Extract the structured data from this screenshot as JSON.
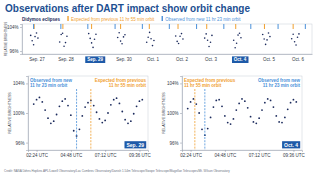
{
  "title": "Observations after DART impact show orbit change",
  "credit": "Credit: NASA/Johns Hopkins APL/Lowell Observatory/Las Cumbres Observatory/Danish 1.54m Telescope/Swope Telescope/Magellan Telescopes/Mt. Wilson Observatory",
  "chart_data": [
    {
      "type": "scatter",
      "y_label": "RELATIVE BRIGHTNESS",
      "color": "#1b2a5c",
      "x": [
        0.3,
        0.35,
        0.4,
        0.45,
        0.5,
        0.55,
        1.3,
        1.35,
        1.4,
        1.45,
        1.5,
        1.55,
        2.3,
        2.35,
        2.4,
        2.45,
        2.5,
        2.55,
        3.3,
        3.35,
        3.4,
        3.45,
        3.5,
        3.55,
        4.3,
        4.35,
        4.4,
        4.45,
        4.5,
        4.55,
        5.3,
        5.35,
        5.4,
        5.45,
        5.5,
        5.55,
        6.3,
        6.35,
        6.4,
        6.45,
        6.5,
        6.55,
        7.3,
        7.35,
        7.4,
        7.45,
        7.5,
        7.55,
        8.3,
        8.35,
        8.4,
        8.45,
        8.5,
        8.55,
        9.3,
        9.35,
        9.4,
        9.45,
        9.5,
        9.55
      ],
      "values": [
        101.2,
        99.4,
        98.1,
        100.8,
        102.0,
        100.3,
        99.0,
        101.5,
        101.9,
        97.6,
        98.8,
        100.9,
        101.8,
        100.2,
        98.7,
        97.2,
        99.9,
        101.6,
        100.5,
        102.1,
        99.3,
        98.4,
        100.7,
        101.4,
        98.9,
        100.6,
        102.2,
        100.1,
        97.8,
        99.5,
        101.0,
        99.2,
        98.5,
        100.9,
        101.8,
        100.0,
        100.3,
        101.7,
        99.6,
        97.5,
        98.9,
        101.2,
        99.6,
        97.1,
        98.6,
        101.3,
        101.9,
        100.4,
        101.5,
        100.0,
        98.2,
        99.7,
        102.0,
        100.8,
        100.1,
        101.6,
        99.1,
        98.0,
        100.6,
        101.7
      ],
      "xlim": [
        0,
        10
      ],
      "xticks": [
        {
          "value": 0.5,
          "label": "Sep. 27"
        },
        {
          "value": 1.5,
          "label": "Sep. 28"
        },
        {
          "value": 2.5,
          "label": "Sep. 29"
        },
        {
          "value": 3.5,
          "label": "Sep. 30"
        },
        {
          "value": 4.5,
          "label": "Oct. 1"
        },
        {
          "value": 5.5,
          "label": "Oct. 2"
        },
        {
          "value": 6.5,
          "label": "Oct. 3"
        },
        {
          "value": 7.5,
          "label": "Oct. 4"
        },
        {
          "value": 8.5,
          "label": "Oct. 5"
        },
        {
          "value": 9.5,
          "label": "Oct. 6"
        }
      ],
      "ylim": [
        95,
        105
      ],
      "yticks": [
        {
          "value": 104,
          "label": "104%"
        },
        {
          "value": 96,
          "label": "96%"
        }
      ],
      "eclipses": {
        "label": "Didymos eclipses",
        "series": [
          {
            "name": "Expected from previous 11 hr 55 min orbit",
            "color": "#f0a030",
            "marker": "tick",
            "x": [
              0.42,
              1.41,
              2.4,
              3.4,
              4.39,
              5.38,
              6.37,
              7.37,
              8.36,
              9.35
            ]
          },
          {
            "name": "Observed from new 11 hr 23 min orbit",
            "color": "#4a90d9",
            "marker": "tick",
            "x": [
              0.4,
              1.34,
              2.27,
              3.21,
              4.15,
              5.08,
              6.02,
              6.96,
              7.89,
              8.83,
              9.77
            ]
          }
        ]
      }
    },
    {
      "type": "scatter",
      "title": "Sep. 29",
      "y_label": "RELATIVE BRIGHTNESS",
      "color": "#1b2a5c",
      "x": [
        2.2,
        2.4,
        2.6,
        2.8,
        3.0,
        3.2,
        3.4,
        3.6,
        3.8,
        4.0,
        4.2,
        4.4,
        4.6,
        4.8,
        5.0,
        5.2,
        5.4,
        5.6,
        5.8,
        6.0,
        6.2,
        6.4,
        6.6,
        6.8,
        7.0,
        7.2,
        7.4,
        7.6,
        7.8,
        8.0,
        8.2,
        8.4,
        8.6,
        8.8,
        9.0,
        9.2,
        9.4,
        9.6,
        9.8
      ],
      "values": [
        101.2,
        101.8,
        102.1,
        101.5,
        100.4,
        99.3,
        98.6,
        98.9,
        99.8,
        100.9,
        101.6,
        101.9,
        101.0,
        99.7,
        97.6,
        96.9,
        97.8,
        99.6,
        100.8,
        101.4,
        101.7,
        101.0,
        100.1,
        99.2,
        98.7,
        99.0,
        100.0,
        101.1,
        101.8,
        102.0,
        101.3,
        100.2,
        99.1,
        98.6,
        98.9,
        99.9,
        100.9,
        101.6,
        101.8
      ],
      "xlim": [
        1.8,
        10.2
      ],
      "xticks": [
        {
          "value": 2.4,
          "label": "02:24 UTC"
        },
        {
          "value": 4.8,
          "label": "04:48 UTC"
        },
        {
          "value": 7.2,
          "label": "07:12 UTC"
        },
        {
          "value": 9.6,
          "label": "09:36 UTC"
        }
      ],
      "ylim": [
        95,
        105
      ],
      "yticks": [
        {
          "value": 104,
          "label": "104%"
        },
        {
          "value": 100,
          "label": "100%"
        },
        {
          "value": 96,
          "label": "96%"
        }
      ],
      "annotations": [
        {
          "x": 5.2,
          "text": "Observed from new 11 hr 23 min orbit",
          "color": "#4a90d9"
        },
        {
          "x": 6.2,
          "text": "Expected from previous 11 hr 55 min orbit",
          "color": "#f0a030"
        }
      ]
    },
    {
      "type": "scatter",
      "title": "Oct. 4",
      "y_label": "RELATIVE BRIGHTNESS",
      "color": "#1b2a5c",
      "x": [
        2.2,
        2.4,
        2.6,
        2.8,
        3.0,
        3.2,
        3.4,
        3.6,
        3.8,
        4.0,
        4.2,
        4.4,
        4.6,
        4.8,
        5.0,
        5.2,
        5.4,
        5.6,
        5.8,
        6.0,
        6.2,
        6.4,
        6.6,
        6.8,
        7.0,
        7.2,
        7.4,
        7.6,
        7.8,
        8.0,
        8.2,
        8.4,
        8.6,
        8.8,
        9.0,
        9.2,
        9.4,
        9.6,
        9.8
      ],
      "values": [
        100.6,
        101.5,
        101.9,
        101.2,
        100.0,
        97.8,
        97.0,
        97.9,
        99.4,
        100.8,
        101.7,
        101.8,
        100.9,
        99.6,
        98.7,
        98.5,
        99.2,
        100.4,
        101.3,
        101.9,
        101.6,
        100.7,
        99.5,
        98.8,
        98.6,
        99.3,
        100.4,
        101.4,
        101.9,
        101.7,
        100.8,
        99.6,
        98.8,
        98.7,
        99.4,
        100.5,
        101.4,
        101.8,
        101.5
      ],
      "xlim": [
        1.8,
        10.2
      ],
      "xticks": [
        {
          "value": 2.4,
          "label": "02:24 UTC"
        },
        {
          "value": 4.8,
          "label": "04:48 UTC"
        },
        {
          "value": 7.2,
          "label": "07:12 UTC"
        },
        {
          "value": 9.6,
          "label": "09:36 UTC"
        }
      ],
      "ylim": [
        95,
        105
      ],
      "yticks": [
        {
          "value": 104,
          "label": "104%"
        },
        {
          "value": 100,
          "label": "100%"
        },
        {
          "value": 96,
          "label": "96%"
        }
      ],
      "annotations": [
        {
          "x": 2.7,
          "text": "Expected from previous 11 hr 55 min orbit",
          "color": "#f0a030"
        },
        {
          "x": 3.4,
          "text": "Observed from new 11 hr 23 min orbit",
          "color": "#4a90d9"
        }
      ]
    }
  ]
}
